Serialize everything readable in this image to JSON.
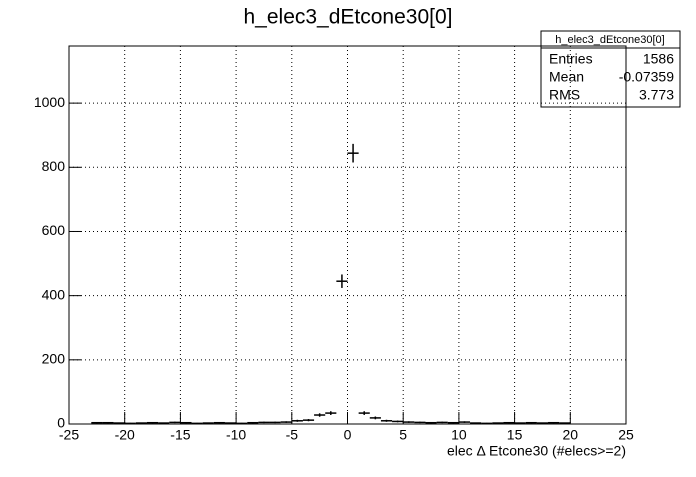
{
  "chart_data": {
    "type": "histogram",
    "title": "h_elec3_dEtcone30[0]",
    "x_label": "elec Δ Etcone30 (#elecs>=2)",
    "bins": [
      -23,
      -22,
      -21,
      -20,
      -19,
      -18,
      -17,
      -16,
      -15,
      -14,
      -13,
      -12,
      -11,
      -10,
      -9,
      -8,
      -7,
      -6,
      -5,
      -4,
      -3,
      -2,
      -1,
      0,
      1,
      2,
      3,
      4,
      5,
      6,
      7,
      8,
      9,
      10,
      11,
      12,
      13,
      14,
      15,
      16,
      17,
      18,
      19,
      20
    ],
    "values": [
      4,
      4,
      3,
      2,
      3,
      4,
      3,
      5,
      4,
      2,
      3,
      4,
      3,
      2,
      4,
      5,
      5,
      6,
      10,
      12,
      28,
      34,
      445,
      844,
      34,
      19,
      10,
      8,
      6,
      5,
      4,
      5,
      4,
      6,
      3,
      2,
      3,
      4,
      3,
      4,
      3,
      4,
      3
    ],
    "errors": [
      2,
      2,
      1.7,
      1.4,
      1.7,
      2,
      1.7,
      2.2,
      2,
      1.4,
      1.7,
      2,
      1.7,
      1.4,
      2,
      2.2,
      2.2,
      2.4,
      3.2,
      3.5,
      5.3,
      5.8,
      21,
      29,
      5.8,
      4.4,
      3.2,
      2.8,
      2.4,
      2.2,
      2,
      2.2,
      2,
      2.4,
      1.7,
      1.4,
      1.7,
      2,
      1.7,
      2,
      1.7,
      2,
      1.7
    ],
    "color": "#000000",
    "xlim": [
      -25,
      25
    ],
    "xticks": [
      -25,
      -20,
      -15,
      -10,
      -5,
      0,
      5,
      10,
      15,
      20,
      25
    ],
    "ylim": [
      0,
      1178
    ],
    "yticks": [
      0,
      200,
      400,
      600,
      800,
      1000
    ],
    "grid": true,
    "stats": {
      "title": "h_elec3_dEtcone30[0]",
      "rows": [
        {
          "label": "Entries",
          "value": 1586
        },
        {
          "label": "Mean",
          "value": -0.07359
        },
        {
          "label": "RMS",
          "value": 3.773
        }
      ]
    }
  }
}
